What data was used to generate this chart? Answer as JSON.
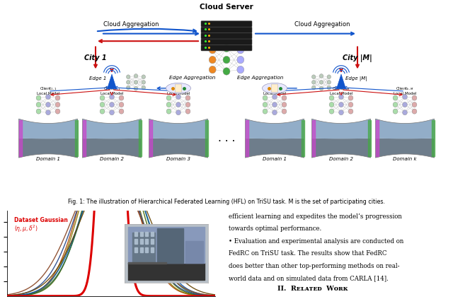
{
  "fig_width": 6.4,
  "fig_height": 4.23,
  "dpi": 100,
  "bg_color": "#ffffff",
  "caption": "Fig. 1: The illustration of Hierarchical Federated Learning (HFL) on TriSU task. M is the set of participating cities.",
  "caption_fontsize": 5.8,
  "gaussian_plot": {
    "dataset_gaussian": {
      "mean": 0,
      "std": 6,
      "color": "#dd0000",
      "linewidth": 2.2
    },
    "rgb_gaussians": [
      {
        "mean": -2,
        "std": 18,
        "color": "#aa4400",
        "lw": 1.0
      },
      {
        "mean": -1,
        "std": 18,
        "color": "#887700",
        "lw": 1.0
      },
      {
        "mean": 1,
        "std": 18,
        "color": "#446600",
        "lw": 1.0
      },
      {
        "mean": 2,
        "std": 19,
        "color": "#226644",
        "lw": 1.0
      },
      {
        "mean": -2,
        "std": 20,
        "color": "#224488",
        "lw": 1.0
      },
      {
        "mean": 2,
        "std": 20,
        "color": "#0055aa",
        "lw": 1.0
      },
      {
        "mean": -3,
        "std": 22,
        "color": "#884422",
        "lw": 1.0
      },
      {
        "mean": 3,
        "std": 22,
        "color": "#664400",
        "lw": 1.0
      }
    ],
    "ylim": [
      0,
      0.0115
    ],
    "yticks": [
      0.002,
      0.004,
      0.006,
      0.008,
      0.01
    ],
    "label_dataset_color": "#dd0000",
    "label_rgb_color": "#0000cc"
  },
  "text_lines": [
    "efficient learning and expedites the model’s progression",
    "towards optimal performance.",
    "• Evaluation and experimental analysis are conducted on",
    "FedRC on TriSU task. The results show that FedRC",
    "does better than other top-performing methods on real-",
    "world data and on simulated data from CARLA [14]."
  ],
  "section_title": "II.  Rᴇʟᴀᴛᴇᴅ  Wᴏʀᴋ",
  "blue": "#1155cc",
  "red": "#cc1111",
  "dark": "#111111"
}
